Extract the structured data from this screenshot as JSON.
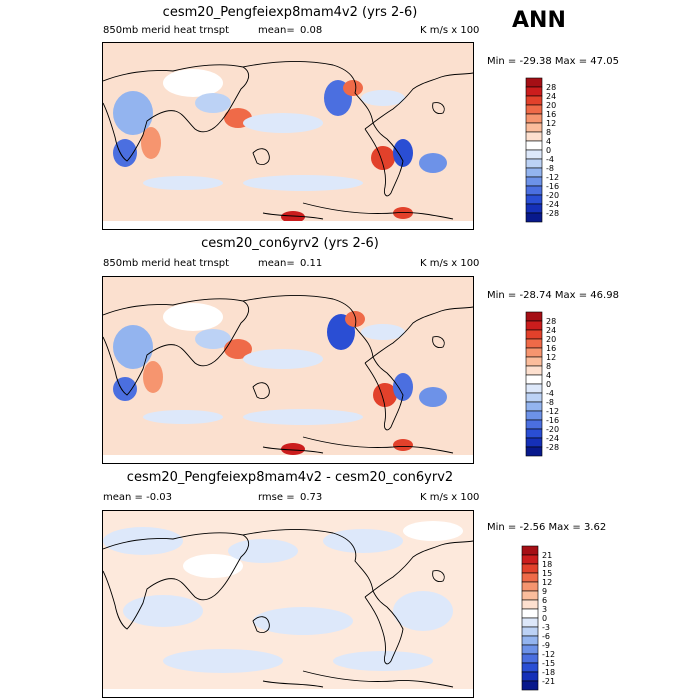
{
  "season": "ANN",
  "panels": [
    {
      "title": "cesm20_Pengfeiexp8mam4v2 (yrs 2-6)",
      "left_label": "850mb merid heat trnspt",
      "mean_label": "mean=",
      "mean_value": "0.08",
      "units": "K m/s x 100",
      "minmax": "Min = -29.38 Max =  47.05",
      "colorbar_labels": [
        "28",
        "24",
        "20",
        "16",
        "12",
        "8",
        "4",
        "0",
        "-4",
        "-8",
        "-12",
        "-16",
        "-20",
        "-24",
        "-28"
      ],
      "colorbar_colors": [
        "#a50f15",
        "#cb1d1d",
        "#e2412b",
        "#ef6a48",
        "#f6956f",
        "#fbbd9c",
        "#fde0cf",
        "#ffffff",
        "#dde8fa",
        "#bcd2f5",
        "#93b4ef",
        "#6d92e8",
        "#4b6fe0",
        "#2a4ed4",
        "#1530b8",
        "#08198c"
      ]
    },
    {
      "title": "cesm20_con6yrv2 (yrs 2-6)",
      "left_label": "850mb merid heat trnspt",
      "mean_label": "mean=",
      "mean_value": "0.11",
      "units": "K m/s x 100",
      "minmax": "Min = -28.74 Max =  46.98",
      "colorbar_labels": [
        "28",
        "24",
        "20",
        "16",
        "12",
        "8",
        "4",
        "0",
        "-4",
        "-8",
        "-12",
        "-16",
        "-20",
        "-24",
        "-28"
      ],
      "colorbar_colors": [
        "#a50f15",
        "#cb1d1d",
        "#e2412b",
        "#ef6a48",
        "#f6956f",
        "#fbbd9c",
        "#fde0cf",
        "#ffffff",
        "#dde8fa",
        "#bcd2f5",
        "#93b4ef",
        "#6d92e8",
        "#4b6fe0",
        "#2a4ed4",
        "#1530b8",
        "#08198c"
      ]
    },
    {
      "title": "cesm20_Pengfeiexp8mam4v2 - cesm20_con6yrv2",
      "left_label": "mean =  -0.03",
      "mean_label": "rmse =",
      "mean_value": "0.73",
      "units": "K m/s x 100",
      "minmax": "Min =  -2.56 Max =   3.62",
      "colorbar_labels": [
        "21",
        "18",
        "15",
        "12",
        "9",
        "6",
        "3",
        "0",
        "-3",
        "-6",
        "-9",
        "-12",
        "-15",
        "-18",
        "-21"
      ],
      "colorbar_colors": [
        "#a50f15",
        "#cb1d1d",
        "#e2412b",
        "#ef6a48",
        "#f6956f",
        "#fbbd9c",
        "#fde0cf",
        "#ffffff",
        "#dde8fa",
        "#bcd2f5",
        "#93b4ef",
        "#6d92e8",
        "#4b6fe0",
        "#2a4ed4",
        "#1530b8",
        "#08198c"
      ]
    }
  ]
}
